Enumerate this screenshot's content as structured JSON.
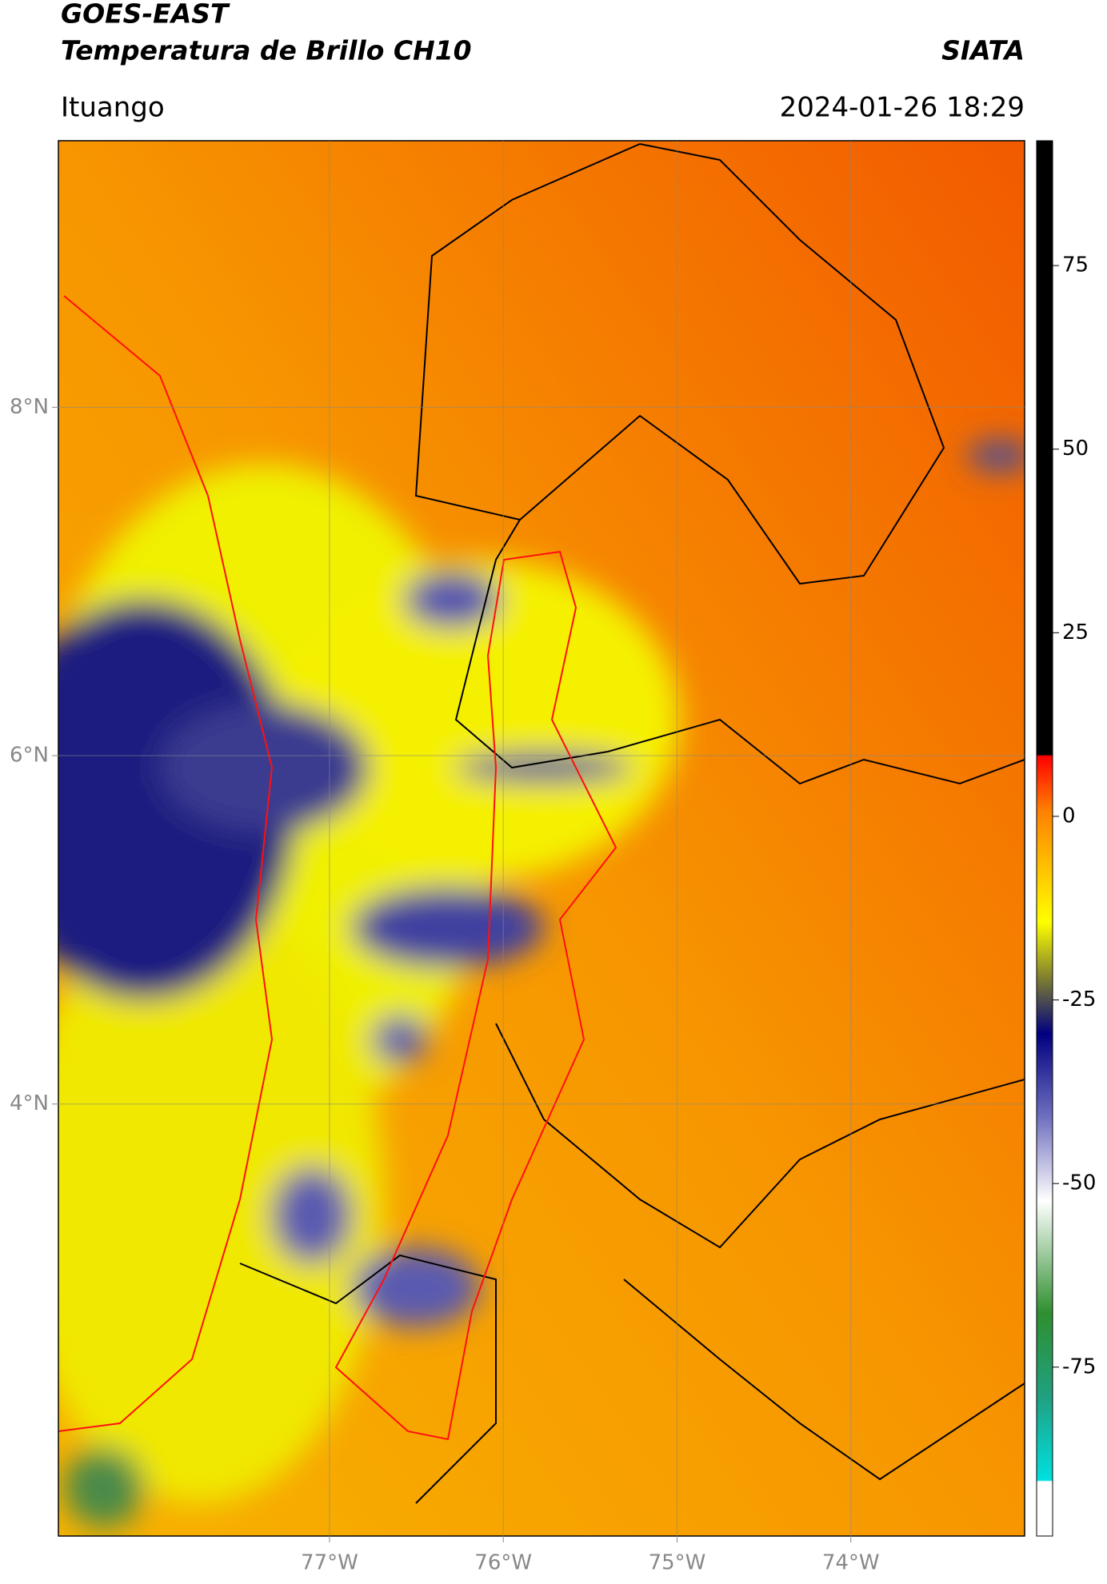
{
  "header": {
    "title": "GOES-EAST",
    "subtitle": "Temperatura de Brillo CH10",
    "brand": "SIATA",
    "location": "Ituango",
    "timestamp": "2024-01-26 18:29"
  },
  "map": {
    "xlim": [
      -78.56,
      -73.0
    ],
    "ylim": [
      1.52,
      9.53
    ],
    "xticks": [
      {
        "value": -77,
        "label": "77°W"
      },
      {
        "value": -76,
        "label": "76°W"
      },
      {
        "value": -75,
        "label": "75°W"
      },
      {
        "value": -74,
        "label": "74°W"
      }
    ],
    "yticks": [
      {
        "value": 8,
        "label": "8°N"
      },
      {
        "value": 6,
        "label": "6°N"
      },
      {
        "value": 4,
        "label": "4°N"
      }
    ],
    "grid": true
  },
  "colorbar": {
    "lim": [
      -98,
      92
    ],
    "ticks": [
      75,
      50,
      25,
      0,
      -25,
      -50,
      -75
    ]
  }
}
